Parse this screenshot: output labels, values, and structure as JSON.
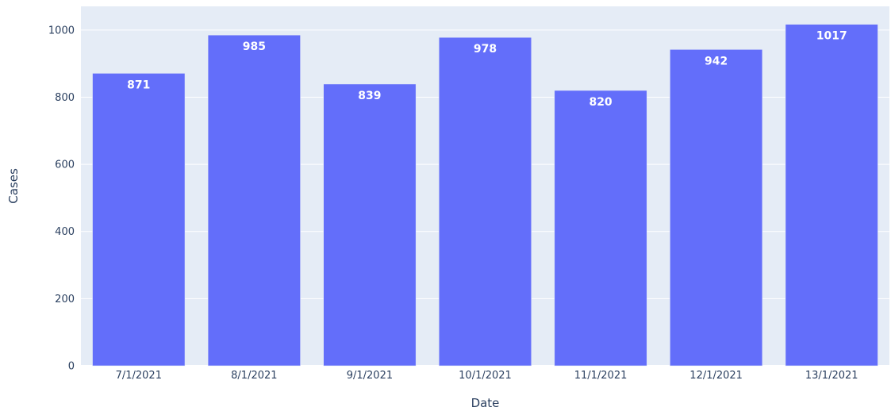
{
  "chart_data": {
    "type": "bar",
    "title": "",
    "xlabel": "Date",
    "ylabel": "Cases",
    "categories": [
      "7/1/2021",
      "8/1/2021",
      "9/1/2021",
      "10/1/2021",
      "11/1/2021",
      "12/1/2021",
      "13/1/2021"
    ],
    "values": [
      871,
      985,
      839,
      978,
      820,
      942,
      1017
    ],
    "ylim": [
      0,
      1070.5
    ],
    "yticks": [
      0,
      200,
      400,
      600,
      800,
      1000
    ],
    "grid": true,
    "data_labels": "inside-top",
    "colors": {
      "bar": "#636efa",
      "plot_background": "#e5ecf6",
      "grid": "#ffffff",
      "text": "#2a3f5f"
    }
  }
}
